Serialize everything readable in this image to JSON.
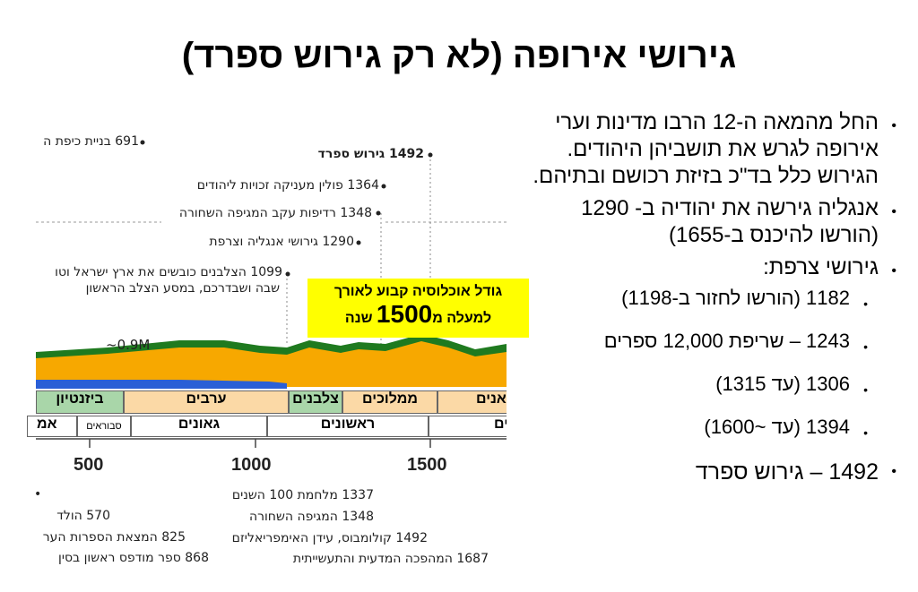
{
  "title": "גירושי אירופה (לא רק גירוש ספרד)",
  "bullets": {
    "main1": "החל מהמאה ה-12 הרבו מדינות וערי אירופה לגרש את תושביהן היהודים. הגירוש כלל בד\"כ בזיזת רכושם ובתיהם.",
    "main2": "אנגליה גירשה את יהודיה ב- 1290 (הורשו להיכנס ב-1655)",
    "main3": "גירושי צרפת:",
    "sub1": "1182 (הורשו לחזור ב-1198)",
    "sub2": "1243 – שריפת 12,000 ספרים",
    "sub3": "1306 (עד 1315)",
    "sub4": "1394 (עד ~1600)",
    "main4": "1492 – גירוש ספרד"
  },
  "timeline": {
    "top_labels": {
      "e691": "691 בניית כיפת ה",
      "e1492": "1492 גירוש ספרד",
      "e1364": "1364 פולין מעניקה זכויות ליהודים",
      "e1348": "1348 רדיפות עקב המגיפה השחורה",
      "e1290": "1290 גירושי אנגליה וצרפת",
      "e1099a": "1099 הצלבנים כובשים את ארץ ישראל וטו",
      "e1099b": "שבה ושבדרכם, במסע הצלב הראשון"
    },
    "callout": {
      "line1": "גודל אוכלוסיה קבוע לאורך",
      "line2_prefix": "למעלה מ",
      "line2_number": "1500",
      "line2_suffix": " שנה"
    },
    "population_label": "~0.9M",
    "bands_top": {
      "byzantine": "ביזנטיון",
      "arabs": "ערבים",
      "crusaders": "צלבנים",
      "mamluks": "ממלוכים",
      "ottomans": "אנים"
    },
    "bands_bottom": {
      "amoraim": "אמ",
      "savoraim": "סבוראים",
      "geonim": "גאונים",
      "rishonim": "ראשונים",
      "acharonim": "ים"
    },
    "axis": {
      "t500": "500",
      "t1000": "1000",
      "t1500": "1500"
    },
    "bottom_labels": {
      "e570": "570 הולד",
      "e825": "825 המצאת הספרות הער",
      "e868": "868 ספר מודפס ראשון בסין",
      "e1337": "1337 מלחמת 100 השנים",
      "e1348": "1348 המגיפה השחורה",
      "e1492": "1492 קולומבוס, עידן האימפריאליזם",
      "e1687": "1687 המהפכה המדעית והתעשייתית"
    }
  },
  "colors": {
    "green": "#1f7a1f",
    "orange": "#f7a800",
    "blue": "#2a5fd6",
    "yellow": "#ffff00",
    "band_green": "#a9d6a9",
    "band_peach": "#fbd9a6"
  }
}
